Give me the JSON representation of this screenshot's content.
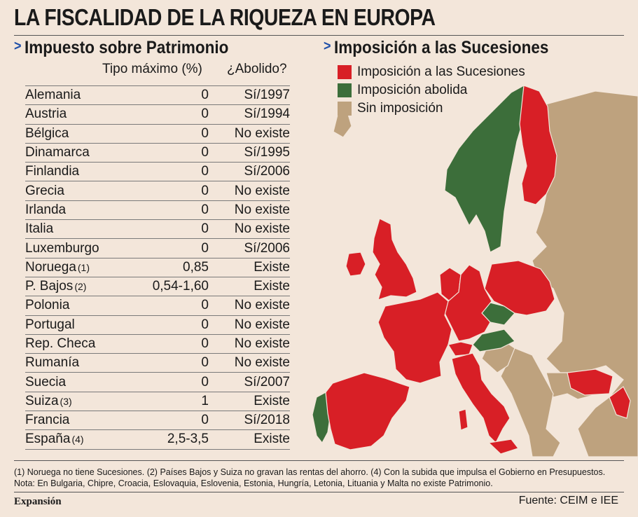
{
  "title": "LA FISCALIDAD DE LA RIQUEZA EN EUROPA",
  "left_section": {
    "heading": "Impuesto sobre Patrimonio",
    "col_rate": "Tipo máximo (%)",
    "col_abolished": "¿Abolido?",
    "rows": [
      {
        "country": "Alemania",
        "note": "",
        "rate": "0",
        "abolished": "Sí/1997"
      },
      {
        "country": "Austria",
        "note": "",
        "rate": "0",
        "abolished": "Sí/1994"
      },
      {
        "country": "Bélgica",
        "note": "",
        "rate": "0",
        "abolished": "No existe"
      },
      {
        "country": "Dinamarca",
        "note": "",
        "rate": "0",
        "abolished": "Sí/1995"
      },
      {
        "country": "Finlandia",
        "note": "",
        "rate": "0",
        "abolished": "Sí/2006"
      },
      {
        "country": "Grecia",
        "note": "",
        "rate": "0",
        "abolished": "No existe"
      },
      {
        "country": "Irlanda",
        "note": "",
        "rate": "0",
        "abolished": "No existe"
      },
      {
        "country": "Italia",
        "note": "",
        "rate": "0",
        "abolished": "No existe"
      },
      {
        "country": "Luxemburgo",
        "note": "",
        "rate": "0",
        "abolished": "Sí/2006"
      },
      {
        "country": "Noruega",
        "note": "(1)",
        "rate": "0,85",
        "abolished": "Existe"
      },
      {
        "country": "P. Bajos",
        "note": "(2)",
        "rate": "0,54-1,60",
        "abolished": "Existe"
      },
      {
        "country": "Polonia",
        "note": "",
        "rate": "0",
        "abolished": "No existe"
      },
      {
        "country": "Portugal",
        "note": "",
        "rate": "0",
        "abolished": "No existe"
      },
      {
        "country": "Rep. Checa",
        "note": "",
        "rate": "0",
        "abolished": "No existe"
      },
      {
        "country": "Rumanía",
        "note": "",
        "rate": "0",
        "abolished": "No existe"
      },
      {
        "country": "Suecia",
        "note": "",
        "rate": "0",
        "abolished": "Sí/2007"
      },
      {
        "country": "Suiza",
        "note": "(3)",
        "rate": "1",
        "abolished": "Existe"
      },
      {
        "country": "Francia",
        "note": "",
        "rate": "0",
        "abolished": "Sí/2018"
      },
      {
        "country": "España",
        "note": "(4)",
        "rate": "2,5-3,5",
        "abolished": "Existe"
      }
    ]
  },
  "right_section": {
    "heading": "Imposición a las Sucesiones",
    "legend": [
      {
        "label": "Imposición a las Sucesiones",
        "color": "#d81f26"
      },
      {
        "label": "Imposición abolida",
        "color": "#3c6e3a"
      },
      {
        "label": "Sin imposición",
        "color": "#bea27e"
      }
    ]
  },
  "colors": {
    "background": "#f3e6da",
    "taxed": "#d81f26",
    "abolished": "#3c6e3a",
    "none": "#bea27e",
    "chevron": "#1f4fa8"
  },
  "footnotes": {
    "line1": "(1) Noruega no tiene Sucesiones. (2) Países Bajos y Suiza no gravan las rentas del ahorro. (4) Con la subida que impulsa el Gobierno en Presupuestos.",
    "line2": "Nota: En Bulgaria, Chipre, Croacia, Eslovaquia, Eslovenia, Estonia, Hungría, Letonia, Lituania y Malta no existe Patrimonio."
  },
  "brand": "Expansión",
  "source": "Fuente: CEIM e IEE"
}
